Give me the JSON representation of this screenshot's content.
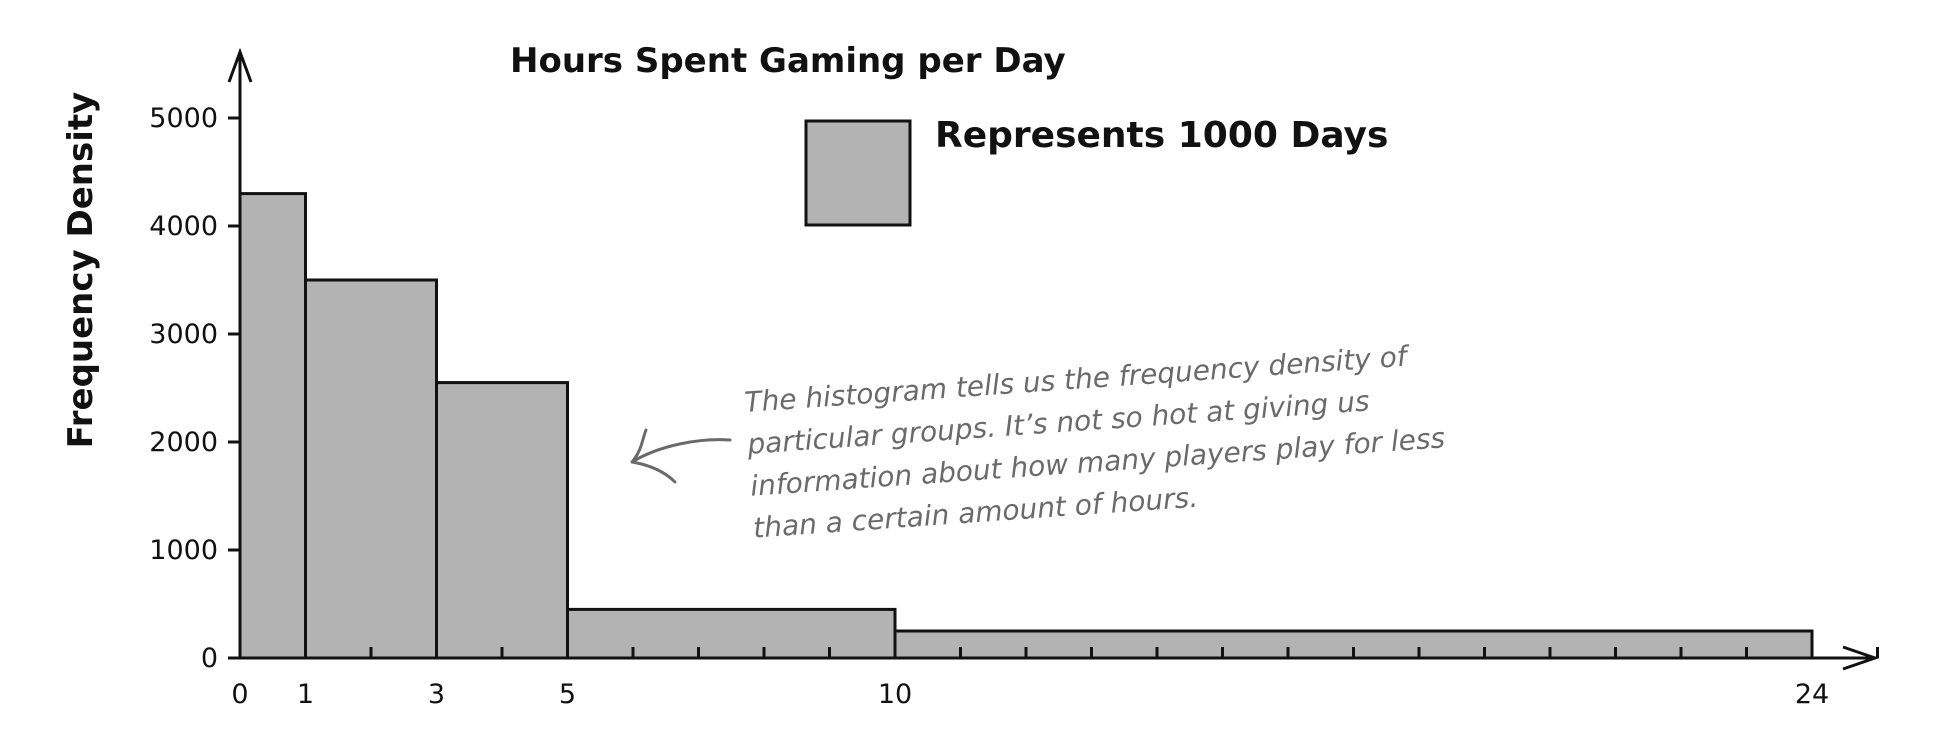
{
  "chart_data": {
    "type": "bar",
    "subtype": "histogram",
    "title": "Hours Spent Gaming per Day",
    "ylabel": "Frequency Density",
    "xlabel": "",
    "xlim": [
      0,
      25
    ],
    "ylim": [
      0,
      5000
    ],
    "x_tick_labels": [
      "0",
      "1",
      "3",
      "5",
      "10",
      "24"
    ],
    "x_minor_ticks_every": 1,
    "y_ticks": [
      0,
      1000,
      2000,
      3000,
      4000,
      5000
    ],
    "bins": [
      {
        "x_start": 0,
        "x_end": 1,
        "value": 4300
      },
      {
        "x_start": 1,
        "x_end": 3,
        "value": 3500
      },
      {
        "x_start": 3,
        "x_end": 5,
        "value": 2550
      },
      {
        "x_start": 5,
        "x_end": 10,
        "value": 450
      },
      {
        "x_start": 10,
        "x_end": 24,
        "value": 250
      }
    ],
    "legend": {
      "text": "Represents 1000 Days",
      "swatch_color": "#b3b3b3",
      "placement": "top-center"
    },
    "annotation": {
      "lines": [
        "The histogram tells us the frequency density of",
        "particular groups. It’s not so hot at giving us",
        "information about how many players play for less",
        "than a certain amount of hours."
      ],
      "color": "#6a6a6a"
    },
    "bar_color": "#b3b3b3",
    "grid": false
  }
}
